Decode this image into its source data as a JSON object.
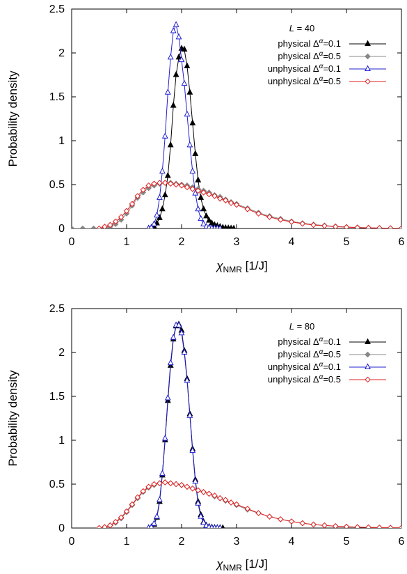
{
  "chart_data": [
    {
      "type": "line",
      "xlabel": {
        "main": "χ",
        "sub": "NMR",
        "unit": " [1/J]"
      },
      "ylabel": "Probability density",
      "xlim": [
        0,
        6
      ],
      "ylim": [
        0,
        2.5
      ],
      "xticks": [
        "0",
        "1",
        "2",
        "3",
        "4",
        "5",
        "6"
      ],
      "yticks": [
        "0",
        "0.5",
        "1",
        "1.5",
        "2",
        "2.5"
      ],
      "legend": {
        "title_var": "L",
        "title_value": "40",
        "position": "top-right"
      },
      "series": [
        {
          "name": "physical Δ^α=0.1",
          "base": "physical",
          "delta": "0.1",
          "color": "#000000",
          "marker": "filled-triangle",
          "x": [
            1.4,
            1.45,
            1.5,
            1.55,
            1.6,
            1.65,
            1.7,
            1.75,
            1.8,
            1.85,
            1.9,
            1.95,
            2.0,
            2.05,
            2.1,
            2.15,
            2.2,
            2.25,
            2.3,
            2.35,
            2.4,
            2.45,
            2.5,
            2.55,
            2.6,
            2.65,
            2.7,
            2.75,
            2.8,
            2.85,
            2.9,
            2.95
          ],
          "y": [
            0.0,
            0.01,
            0.02,
            0.06,
            0.12,
            0.22,
            0.38,
            0.6,
            0.95,
            1.4,
            1.75,
            1.95,
            2.05,
            2.04,
            1.85,
            1.55,
            1.2,
            0.85,
            0.55,
            0.35,
            0.22,
            0.14,
            0.09,
            0.06,
            0.04,
            0.03,
            0.02,
            0.01,
            0.005,
            0.003,
            0.001,
            0.0
          ]
        },
        {
          "name": "physical Δ^α=0.5",
          "base": "physical",
          "delta": "0.5",
          "color": "#888888",
          "marker": "filled-diamond",
          "x": [
            0.0,
            0.2,
            0.4,
            0.6,
            0.7,
            0.8,
            0.9,
            1.0,
            1.1,
            1.2,
            1.3,
            1.4,
            1.5,
            1.6,
            1.7,
            1.8,
            1.9,
            2.0,
            2.1,
            2.2,
            2.3,
            2.4,
            2.5,
            2.6,
            2.7,
            2.8,
            2.9,
            3.0,
            3.2,
            3.4,
            3.6,
            3.8,
            4.0,
            4.2,
            4.4,
            4.6,
            4.8,
            5.0,
            5.2,
            5.4,
            5.6,
            5.8,
            6.0
          ],
          "y": [
            0.0,
            0.0,
            0.0,
            0.01,
            0.02,
            0.05,
            0.1,
            0.17,
            0.26,
            0.35,
            0.41,
            0.46,
            0.49,
            0.51,
            0.52,
            0.52,
            0.51,
            0.5,
            0.49,
            0.47,
            0.45,
            0.43,
            0.41,
            0.38,
            0.36,
            0.33,
            0.3,
            0.28,
            0.23,
            0.18,
            0.14,
            0.11,
            0.08,
            0.06,
            0.045,
            0.034,
            0.024,
            0.017,
            0.012,
            0.008,
            0.005,
            0.003,
            0.002
          ]
        },
        {
          "name": "unphysical Δ^α=0.1",
          "base": "unphysical",
          "delta": "0.1",
          "color": "#1f1fd0",
          "marker": "open-triangle",
          "x": [
            1.4,
            1.45,
            1.5,
            1.55,
            1.6,
            1.65,
            1.7,
            1.75,
            1.8,
            1.85,
            1.9,
            1.95,
            2.0,
            2.05,
            2.1,
            2.15,
            2.2,
            2.25,
            2.3,
            2.35,
            2.4,
            2.45,
            2.5,
            2.55,
            2.6,
            2.65,
            2.7
          ],
          "y": [
            0.0,
            0.01,
            0.05,
            0.15,
            0.35,
            0.65,
            1.05,
            1.55,
            1.95,
            2.25,
            2.32,
            2.18,
            1.92,
            1.65,
            1.3,
            0.95,
            0.65,
            0.4,
            0.22,
            0.11,
            0.05,
            0.02,
            0.01,
            0.005,
            0.002,
            0.001,
            0.0
          ]
        },
        {
          "name": "unphysical Δ^α=0.5",
          "base": "unphysical",
          "delta": "0.5",
          "color": "#e02020",
          "marker": "open-diamond",
          "x": [
            0.5,
            0.6,
            0.7,
            0.8,
            0.9,
            1.0,
            1.1,
            1.2,
            1.3,
            1.4,
            1.5,
            1.6,
            1.7,
            1.8,
            1.9,
            2.0,
            2.1,
            2.2,
            2.3,
            2.4,
            2.5,
            2.6,
            2.7,
            2.8,
            2.9,
            3.0,
            3.2,
            3.4,
            3.6,
            3.8,
            4.0,
            4.2,
            4.4,
            4.6,
            4.8,
            5.0,
            5.2,
            5.4,
            5.6,
            5.8,
            6.0
          ],
          "y": [
            0.0,
            0.02,
            0.04,
            0.08,
            0.13,
            0.2,
            0.28,
            0.37,
            0.44,
            0.49,
            0.51,
            0.52,
            0.52,
            0.51,
            0.5,
            0.49,
            0.47,
            0.45,
            0.43,
            0.41,
            0.39,
            0.37,
            0.34,
            0.32,
            0.29,
            0.27,
            0.22,
            0.17,
            0.13,
            0.1,
            0.075,
            0.055,
            0.04,
            0.03,
            0.021,
            0.015,
            0.01,
            0.007,
            0.005,
            0.003,
            0.002
          ]
        }
      ]
    },
    {
      "type": "line",
      "xlabel": {
        "main": "χ",
        "sub": "NMR",
        "unit": " [1/J]"
      },
      "ylabel": "Probability density",
      "xlim": [
        0,
        6
      ],
      "ylim": [
        0,
        2.5
      ],
      "xticks": [
        "0",
        "1",
        "2",
        "3",
        "4",
        "5",
        "6"
      ],
      "yticks": [
        "0",
        "0.5",
        "1",
        "1.5",
        "2",
        "2.5"
      ],
      "legend": {
        "title_var": "L",
        "title_value": "80",
        "position": "top-right"
      },
      "series": [
        {
          "name": "physical Δ^α=0.1",
          "base": "physical",
          "delta": "0.1",
          "color": "#000000",
          "marker": "filled-triangle",
          "x": [
            1.4,
            1.45,
            1.5,
            1.55,
            1.6,
            1.65,
            1.7,
            1.75,
            1.8,
            1.85,
            1.9,
            1.95,
            2.0,
            2.05,
            2.1,
            2.15,
            2.2,
            2.25,
            2.3,
            2.35,
            2.4,
            2.45,
            2.5,
            2.55,
            2.6,
            2.65,
            2.7,
            2.75
          ],
          "y": [
            0.0,
            0.01,
            0.04,
            0.12,
            0.3,
            0.6,
            1.0,
            1.45,
            1.85,
            2.15,
            2.3,
            2.32,
            2.25,
            2.02,
            1.7,
            1.3,
            0.9,
            0.55,
            0.3,
            0.15,
            0.07,
            0.03,
            0.015,
            0.008,
            0.004,
            0.002,
            0.001,
            0.0
          ]
        },
        {
          "name": "physical Δ^α=0.5",
          "base": "physical",
          "delta": "0.5",
          "color": "#888888",
          "marker": "filled-diamond",
          "x": [
            0.5,
            0.6,
            0.7,
            0.8,
            0.9,
            1.0,
            1.1,
            1.2,
            1.3,
            1.4,
            1.5,
            1.6,
            1.7,
            1.8,
            1.9,
            2.0,
            2.1,
            2.2,
            2.3,
            2.4,
            2.5,
            2.6,
            2.7,
            2.8,
            2.9,
            3.0,
            3.2,
            3.4,
            3.6,
            3.8,
            4.0,
            4.2,
            4.4,
            4.6,
            4.8,
            5.0,
            5.2,
            5.4,
            5.6,
            5.8,
            6.0
          ],
          "y": [
            0.0,
            0.01,
            0.03,
            0.06,
            0.11,
            0.18,
            0.26,
            0.34,
            0.41,
            0.46,
            0.49,
            0.51,
            0.52,
            0.51,
            0.5,
            0.49,
            0.47,
            0.45,
            0.43,
            0.41,
            0.39,
            0.36,
            0.34,
            0.31,
            0.29,
            0.26,
            0.21,
            0.17,
            0.13,
            0.1,
            0.075,
            0.055,
            0.04,
            0.03,
            0.021,
            0.015,
            0.01,
            0.007,
            0.005,
            0.003,
            0.002
          ]
        },
        {
          "name": "unphysical Δ^α=0.1",
          "base": "unphysical",
          "delta": "0.1",
          "color": "#1f1fd0",
          "marker": "open-triangle",
          "x": [
            1.4,
            1.45,
            1.5,
            1.55,
            1.6,
            1.65,
            1.7,
            1.75,
            1.8,
            1.85,
            1.9,
            1.95,
            2.0,
            2.05,
            2.1,
            2.15,
            2.2,
            2.25,
            2.3,
            2.35,
            2.4,
            2.45,
            2.5,
            2.55,
            2.6,
            2.65,
            2.7
          ],
          "y": [
            0.0,
            0.01,
            0.05,
            0.13,
            0.32,
            0.62,
            1.02,
            1.48,
            1.88,
            2.17,
            2.31,
            2.31,
            2.22,
            2.0,
            1.68,
            1.28,
            0.88,
            0.53,
            0.28,
            0.13,
            0.06,
            0.025,
            0.01,
            0.005,
            0.002,
            0.001,
            0.0
          ]
        },
        {
          "name": "unphysical Δ^α=0.5",
          "base": "unphysical",
          "delta": "0.5",
          "color": "#e02020",
          "marker": "open-diamond",
          "x": [
            0.5,
            0.6,
            0.7,
            0.8,
            0.9,
            1.0,
            1.1,
            1.2,
            1.3,
            1.4,
            1.5,
            1.6,
            1.7,
            1.8,
            1.9,
            2.0,
            2.1,
            2.2,
            2.3,
            2.4,
            2.5,
            2.6,
            2.7,
            2.8,
            2.9,
            3.0,
            3.2,
            3.4,
            3.6,
            3.8,
            4.0,
            4.2,
            4.4,
            4.6,
            4.8,
            5.0,
            5.2,
            5.4,
            5.6,
            5.8,
            6.0
          ],
          "y": [
            0.0,
            0.01,
            0.03,
            0.07,
            0.12,
            0.19,
            0.27,
            0.35,
            0.42,
            0.47,
            0.5,
            0.51,
            0.52,
            0.51,
            0.5,
            0.49,
            0.47,
            0.45,
            0.43,
            0.41,
            0.39,
            0.37,
            0.34,
            0.32,
            0.29,
            0.27,
            0.22,
            0.17,
            0.13,
            0.1,
            0.075,
            0.055,
            0.04,
            0.03,
            0.021,
            0.015,
            0.01,
            0.007,
            0.005,
            0.003,
            0.002
          ]
        }
      ]
    }
  ]
}
